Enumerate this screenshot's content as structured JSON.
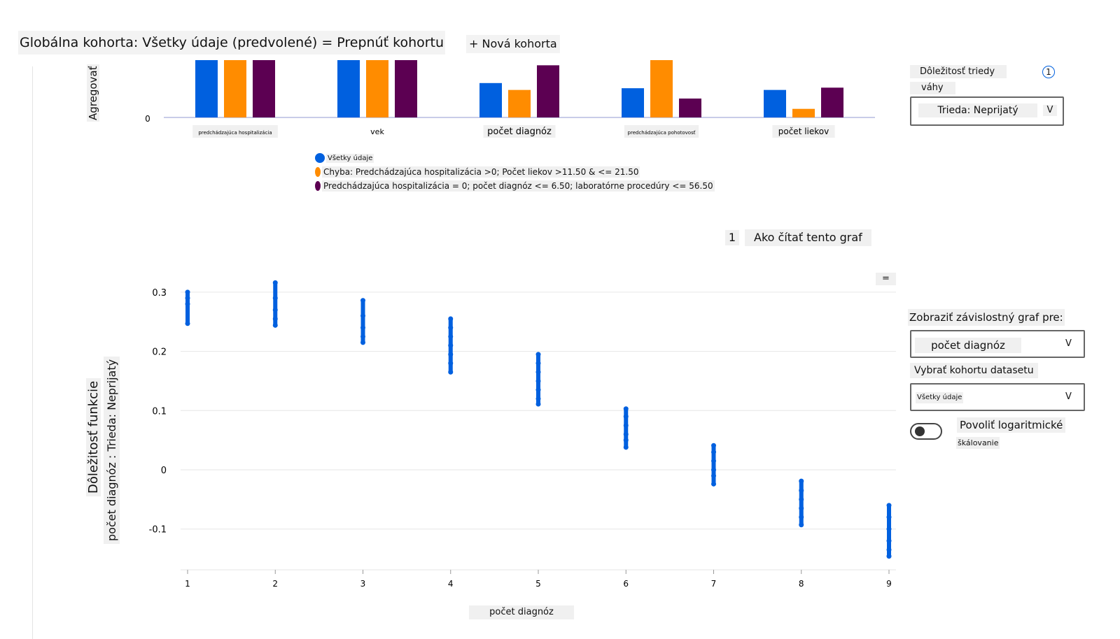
{
  "header": {
    "title": "Globálna kohorta: Všetky údaje (predvolené) = Prepnúť kohortu",
    "new_cohort": "+ Nová kohorta"
  },
  "colors": {
    "all": "#0060df",
    "error": "#ff8c00",
    "cohort2": "#5c0052"
  },
  "chart_data": [
    {
      "type": "bar",
      "ylabel": "Agregovať",
      "y_tick_labels": [
        "0"
      ],
      "categories": [
        "predchádzajúca hospitalizácia",
        "vek",
        "počet diagnóz",
        "predchádzajúca pohotovosť",
        "počet liekov"
      ],
      "series": [
        {
          "name": "Všetky údaje",
          "values": [
            1.0,
            1.0,
            0.6,
            0.51,
            0.48
          ]
        },
        {
          "name": "Chyba: Predchádzajúca hospitalizácia >0; Počet liekov >11.50 & <= 21.50",
          "values": [
            1.0,
            1.0,
            0.48,
            1.0,
            0.15
          ]
        },
        {
          "name": "Predchádzajúca hospitalizácia = 0; počet diagnóz <= 6.50; laboratórne procedúry <= 56.50",
          "values": [
            1.0,
            1.0,
            0.91,
            0.33,
            0.52
          ]
        }
      ],
      "legend": "bottom",
      "note": "relative values, no y scale printed"
    },
    {
      "type": "scatter",
      "xlabel": "počet diagnóz",
      "ylabel": "Dôležitosť funkcie",
      "ylabel2": "počet diagnóz : Trieda: Neprijatý",
      "x_ticks": [
        "1",
        "2",
        "3",
        "4",
        "5",
        "6",
        "7",
        "8",
        "9"
      ],
      "y_ticks": [
        "0.3",
        "0.2",
        "0.1",
        "0",
        "-0.1"
      ],
      "xlim": [
        1,
        9
      ],
      "ylim": [
        -0.17,
        0.33
      ],
      "grid": true,
      "points": [
        {
          "x": 1,
          "y": [
            0.3,
            0.29,
            0.28,
            0.247
          ]
        },
        {
          "x": 2,
          "y": [
            0.316,
            0.29,
            0.27,
            0.255,
            0.244
          ]
        },
        {
          "x": 3,
          "y": [
            0.286,
            0.26,
            0.24,
            0.225,
            0.215
          ]
        },
        {
          "x": 4,
          "y": [
            0.255,
            0.24,
            0.225,
            0.21,
            0.195,
            0.18,
            0.165
          ]
        },
        {
          "x": 5,
          "y": [
            0.195,
            0.18,
            0.165,
            0.15,
            0.135,
            0.12,
            0.111
          ]
        },
        {
          "x": 6,
          "y": [
            0.103,
            0.09,
            0.075,
            0.06,
            0.05,
            0.038
          ]
        },
        {
          "x": 7,
          "y": [
            0.041,
            0.03,
            0.015,
            0.0,
            -0.01,
            -0.024
          ]
        },
        {
          "x": 8,
          "y": [
            -0.019,
            -0.035,
            -0.05,
            -0.065,
            -0.08,
            -0.093
          ]
        },
        {
          "x": 9,
          "y": [
            -0.06,
            -0.08,
            -0.1,
            -0.12,
            -0.135,
            -0.146
          ]
        }
      ]
    }
  ],
  "how_to_read": {
    "num": "1",
    "label": "Ako čítať tento graf"
  },
  "menu_icon": "=",
  "right": {
    "class_importance": "Dôležitosť triedy",
    "weights": "váhy",
    "info": "1",
    "class_select": "Trieda: Neprijatý",
    "dep_label": "Zobraziť závislostný graf pre:",
    "dep_select": "počet diagnóz",
    "cohort_label": "Vybrať kohortu datasetu",
    "cohort_select": "Všetky údaje",
    "log_label": "Povoliť logaritmické",
    "log_label2": "škálovanie",
    "log_enabled": false,
    "chevron": "V"
  }
}
